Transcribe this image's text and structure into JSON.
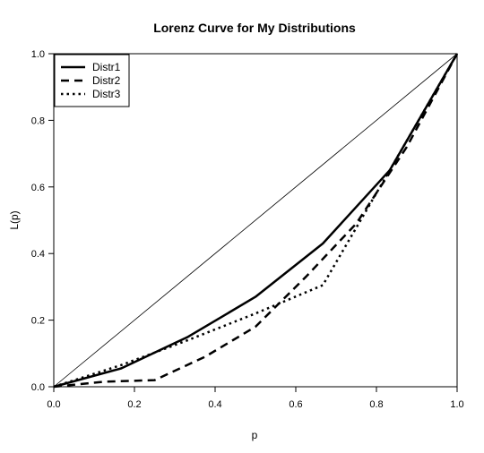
{
  "chart_data": {
    "type": "line",
    "title": "Lorenz Curve for My Distributions",
    "xlabel": "p",
    "ylabel": "L(p)",
    "xlim": [
      0,
      1
    ],
    "ylim": [
      0,
      1
    ],
    "xticks": [
      "0.0",
      "0.2",
      "0.4",
      "0.6",
      "0.8",
      "1.0"
    ],
    "yticks": [
      "0.0",
      "0.2",
      "0.4",
      "0.6",
      "0.8",
      "1.0"
    ],
    "grid": false,
    "legend_position": "top-left",
    "equality_line": {
      "x": [
        0,
        1
      ],
      "y": [
        0,
        1
      ]
    },
    "series": [
      {
        "name": "Distr1",
        "style": "solid",
        "x": [
          0,
          0.167,
          0.333,
          0.5,
          0.667,
          0.833,
          1.0
        ],
        "y": [
          0,
          0.055,
          0.15,
          0.27,
          0.43,
          0.65,
          1.0
        ]
      },
      {
        "name": "Distr2",
        "style": "dashed",
        "x": [
          0,
          0.125,
          0.25,
          0.375,
          0.5,
          0.625,
          0.75,
          0.875,
          1.0
        ],
        "y": [
          0,
          0.015,
          0.02,
          0.09,
          0.18,
          0.33,
          0.49,
          0.72,
          1.0
        ]
      },
      {
        "name": "Distr3",
        "style": "dotted",
        "x": [
          0,
          0.167,
          0.333,
          0.5,
          0.667,
          0.833,
          1.0
        ],
        "y": [
          0,
          0.065,
          0.14,
          0.22,
          0.305,
          0.65,
          1.0
        ]
      }
    ]
  }
}
